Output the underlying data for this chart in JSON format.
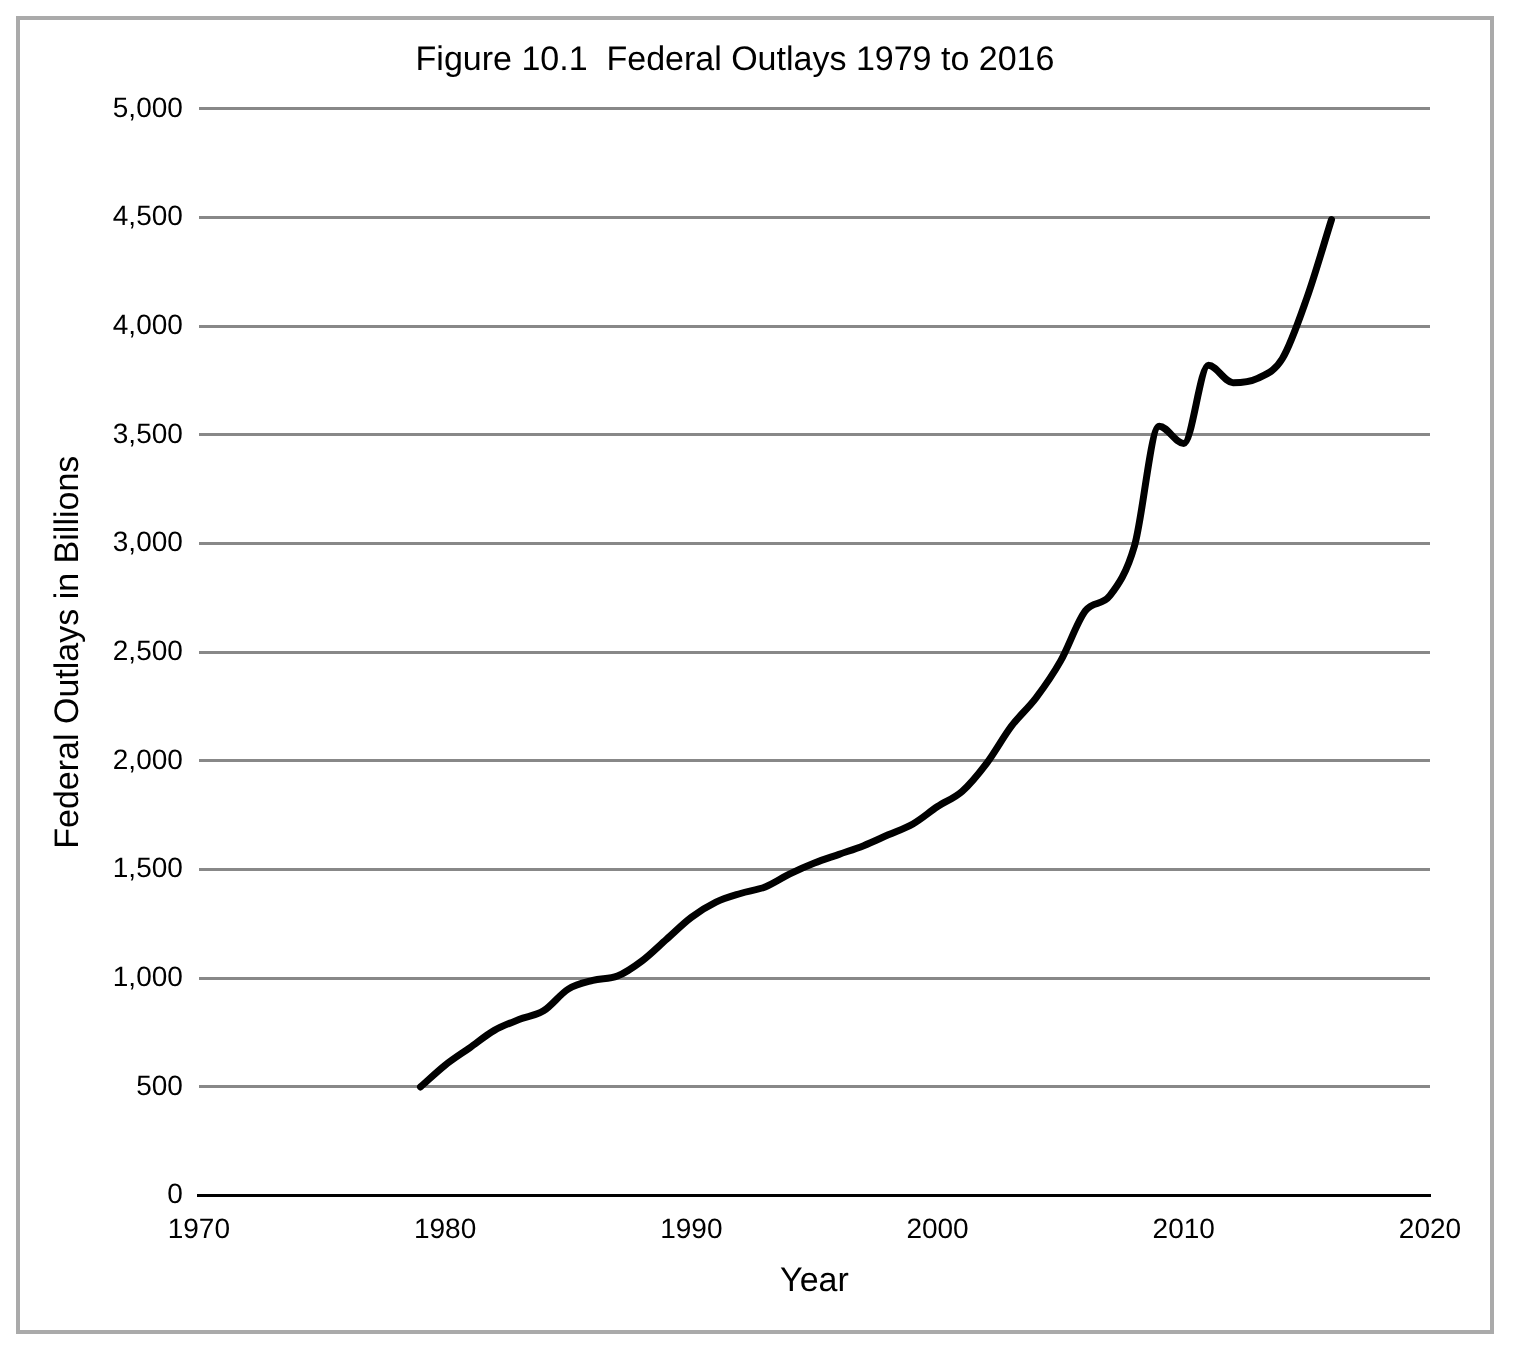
{
  "chart_data": {
    "type": "line",
    "title": "Figure 10.1  Federal Outlays 1979 to 2016",
    "xlabel": "Year",
    "ylabel": "Federal Outlays in Billions",
    "x": [
      1979,
      1980,
      1981,
      1982,
      1983,
      1984,
      1985,
      1986,
      1987,
      1988,
      1989,
      1990,
      1991,
      1992,
      1993,
      1994,
      1995,
      1996,
      1997,
      1998,
      1999,
      2000,
      2001,
      2002,
      2003,
      2004,
      2005,
      2006,
      2007,
      2008,
      2009,
      2010,
      2011,
      2012,
      2013,
      2014,
      2015,
      2016
    ],
    "series": [
      {
        "color": "#000000",
        "values": [
          500,
          600,
          680,
          760,
          810,
          850,
          950,
          990,
          1010,
          1080,
          1180,
          1280,
          1350,
          1390,
          1420,
          1480,
          1530,
          1570,
          1610,
          1660,
          1710,
          1790,
          1860,
          1990,
          2160,
          2290,
          2460,
          2690,
          2760,
          2990,
          3540,
          3460,
          3820,
          3740,
          3760,
          3850,
          4130,
          4490
        ]
      }
    ],
    "xlim": [
      1970,
      2020
    ],
    "xticks": [
      1970,
      1980,
      1990,
      2000,
      2010,
      2020
    ],
    "ylim": [
      0,
      5000
    ],
    "yticks": [
      {
        "value": 0,
        "label": "0"
      },
      {
        "value": 500,
        "label": "500"
      },
      {
        "value": 1000,
        "label": "1,000"
      },
      {
        "value": 1500,
        "label": "1,500"
      },
      {
        "value": 2000,
        "label": "2,000"
      },
      {
        "value": 2500,
        "label": "2,500"
      },
      {
        "value": 3000,
        "label": "3,000"
      },
      {
        "value": 3500,
        "label": "3,500"
      },
      {
        "value": 4000,
        "label": "4,000"
      },
      {
        "value": 4500,
        "label": "4,500"
      },
      {
        "value": 5000,
        "label": "5,000"
      }
    ],
    "grid": "y",
    "legend": false,
    "marker": "none",
    "line_style": "solid"
  }
}
